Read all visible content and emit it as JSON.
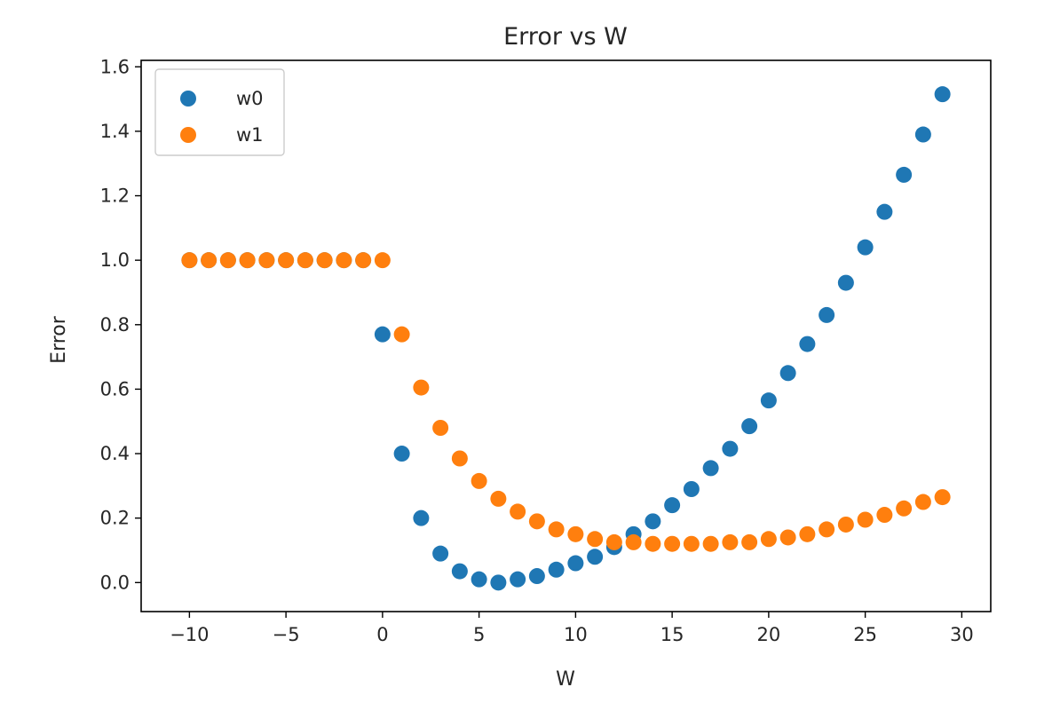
{
  "chart_data": {
    "type": "scatter",
    "title": "Error vs W",
    "xlabel": "W",
    "ylabel": "Error",
    "xlim": [
      -12.5,
      31.5
    ],
    "ylim": [
      -0.09,
      1.62
    ],
    "xticks": [
      -10,
      -5,
      0,
      5,
      10,
      15,
      20,
      25,
      30
    ],
    "xtick_labels": [
      "−10",
      "−5",
      "0",
      "5",
      "10",
      "15",
      "20",
      "25",
      "30"
    ],
    "yticks": [
      0.0,
      0.2,
      0.4,
      0.6,
      0.8,
      1.0,
      1.2,
      1.4,
      1.6
    ],
    "ytick_labels": [
      "0.0",
      "0.2",
      "0.4",
      "0.6",
      "0.8",
      "1.0",
      "1.2",
      "1.4",
      "1.6"
    ],
    "grid": false,
    "legend_position": "top-left",
    "series": [
      {
        "name": "w0",
        "color": "#1f77b4",
        "x": [
          -10,
          -9,
          -8,
          -7,
          -6,
          -5,
          -4,
          -3,
          -2,
          -1,
          0,
          1,
          2,
          3,
          4,
          5,
          6,
          7,
          8,
          9,
          10,
          11,
          12,
          13,
          14,
          15,
          16,
          17,
          18,
          19,
          20,
          21,
          22,
          23,
          24,
          25,
          26,
          27,
          28,
          29
        ],
        "y": [
          1.0,
          1.0,
          1.0,
          1.0,
          1.0,
          1.0,
          1.0,
          1.0,
          1.0,
          1.0,
          0.77,
          0.4,
          0.2,
          0.09,
          0.035,
          0.01,
          0.0,
          0.01,
          0.02,
          0.04,
          0.06,
          0.08,
          0.11,
          0.15,
          0.19,
          0.24,
          0.29,
          0.355,
          0.415,
          0.485,
          0.565,
          0.65,
          0.74,
          0.83,
          0.93,
          1.04,
          1.15,
          1.265,
          1.39,
          1.515
        ]
      },
      {
        "name": "w1",
        "color": "#ff7f0e",
        "x": [
          -10,
          -9,
          -8,
          -7,
          -6,
          -5,
          -4,
          -3,
          -2,
          -1,
          0,
          1,
          2,
          3,
          4,
          5,
          6,
          7,
          8,
          9,
          10,
          11,
          12,
          13,
          14,
          15,
          16,
          17,
          18,
          19,
          20,
          21,
          22,
          23,
          24,
          25,
          26,
          27,
          28,
          29
        ],
        "y": [
          1.0,
          1.0,
          1.0,
          1.0,
          1.0,
          1.0,
          1.0,
          1.0,
          1.0,
          1.0,
          1.0,
          0.77,
          0.605,
          0.48,
          0.385,
          0.315,
          0.26,
          0.22,
          0.19,
          0.165,
          0.15,
          0.135,
          0.125,
          0.125,
          0.12,
          0.12,
          0.12,
          0.12,
          0.125,
          0.125,
          0.135,
          0.14,
          0.15,
          0.165,
          0.18,
          0.195,
          0.21,
          0.23,
          0.25,
          0.265
        ]
      }
    ]
  }
}
